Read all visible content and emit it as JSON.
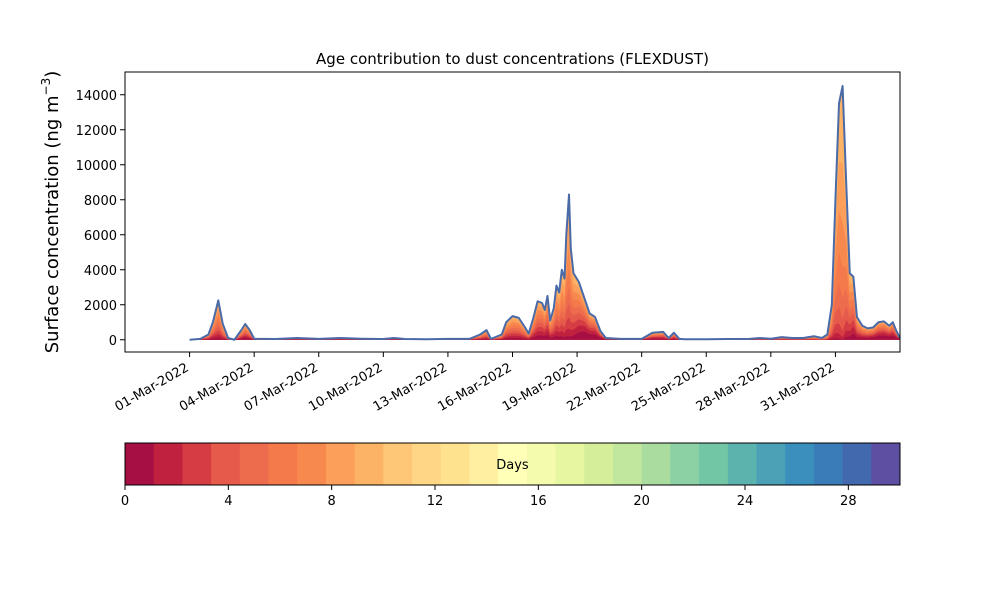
{
  "chart_data": {
    "type": "area",
    "title": "Age contribution to dust concentrations (FLEXDUST)",
    "ylabel_main": "Surface concentration (ng m",
    "ylabel_exp": "−3",
    "ylabel_close": ")",
    "ylim": [
      -700,
      15300
    ],
    "x_range": [
      "2022-02-26",
      "2022-04-03"
    ],
    "y_ticks": [
      0,
      2000,
      4000,
      6000,
      8000,
      10000,
      12000,
      14000
    ],
    "y_tick_labels": [
      "0",
      "2000",
      "4000",
      "6000",
      "8000",
      "10000",
      "12000",
      "14000"
    ],
    "x_ticks": [
      "2022-03-01",
      "2022-03-04",
      "2022-03-07",
      "2022-03-10",
      "2022-03-13",
      "2022-03-16",
      "2022-03-19",
      "2022-03-22",
      "2022-03-25",
      "2022-03-28",
      "2022-03-31"
    ],
    "x_tick_labels": [
      "01-Mar-2022",
      "04-Mar-2022",
      "07-Mar-2022",
      "10-Mar-2022",
      "13-Mar-2022",
      "16-Mar-2022",
      "19-Mar-2022",
      "22-Mar-2022",
      "25-Mar-2022",
      "28-Mar-2022",
      "31-Mar-2022"
    ],
    "total_series": {
      "color": "#4a6aa8",
      "points": [
        [
          "2022-03-01",
          0
        ],
        [
          "2022-03-01T12:00",
          50
        ],
        [
          "2022-03-01T21:00",
          300
        ],
        [
          "2022-03-02T02:00",
          1000
        ],
        [
          "2022-03-02T08:00",
          2250
        ],
        [
          "2022-03-02T13:00",
          900
        ],
        [
          "2022-03-02T19:00",
          100
        ],
        [
          "2022-03-03T02:00",
          0
        ],
        [
          "2022-03-03T09:00",
          500
        ],
        [
          "2022-03-03T14:00",
          900
        ],
        [
          "2022-03-03T19:00",
          550
        ],
        [
          "2022-03-04",
          60
        ],
        [
          "2022-03-05",
          40
        ],
        [
          "2022-03-06",
          100
        ],
        [
          "2022-03-07",
          50
        ],
        [
          "2022-03-08",
          100
        ],
        [
          "2022-03-09",
          60
        ],
        [
          "2022-03-10",
          40
        ],
        [
          "2022-03-10T12:00",
          100
        ],
        [
          "2022-03-11",
          40
        ],
        [
          "2022-03-12",
          30
        ],
        [
          "2022-03-13",
          50
        ],
        [
          "2022-03-14",
          50
        ],
        [
          "2022-03-14T12:00",
          300
        ],
        [
          "2022-03-14T19:00",
          550
        ],
        [
          "2022-03-15",
          50
        ],
        [
          "2022-03-15T12:00",
          300
        ],
        [
          "2022-03-15T17:00",
          1000
        ],
        [
          "2022-03-16",
          1350
        ],
        [
          "2022-03-16T07:00",
          1250
        ],
        [
          "2022-03-16T14:00",
          700
        ],
        [
          "2022-03-16T18:00",
          350
        ],
        [
          "2022-03-16T23:00",
          1200
        ],
        [
          "2022-03-17T04:00",
          2200
        ],
        [
          "2022-03-17T09:00",
          2100
        ],
        [
          "2022-03-17T12:00",
          1700
        ],
        [
          "2022-03-17T15:00",
          2500
        ],
        [
          "2022-03-17T18:00",
          1100
        ],
        [
          "2022-03-17T22:00",
          1800
        ],
        [
          "2022-03-18T01:00",
          3100
        ],
        [
          "2022-03-18T04:00",
          2700
        ],
        [
          "2022-03-18T07:00",
          4000
        ],
        [
          "2022-03-18T10:00",
          3500
        ],
        [
          "2022-03-18T12:00",
          6000
        ],
        [
          "2022-03-18T15:00",
          8300
        ],
        [
          "2022-03-18T17:00",
          5200
        ],
        [
          "2022-03-18T20:00",
          3800
        ],
        [
          "2022-03-19T02:00",
          3300
        ],
        [
          "2022-03-19T08:00",
          2400
        ],
        [
          "2022-03-19T14:00",
          1500
        ],
        [
          "2022-03-19T20:00",
          1300
        ],
        [
          "2022-03-20T02:00",
          500
        ],
        [
          "2022-03-20T08:00",
          100
        ],
        [
          "2022-03-21",
          50
        ],
        [
          "2022-03-22",
          50
        ],
        [
          "2022-03-22T12:00",
          400
        ],
        [
          "2022-03-23",
          450
        ],
        [
          "2022-03-23T06:00",
          100
        ],
        [
          "2022-03-23T12:00",
          400
        ],
        [
          "2022-03-23T18:00",
          50
        ],
        [
          "2022-03-24",
          30
        ],
        [
          "2022-03-25",
          30
        ],
        [
          "2022-03-26",
          40
        ],
        [
          "2022-03-27",
          50
        ],
        [
          "2022-03-27T12:00",
          100
        ],
        [
          "2022-03-28",
          60
        ],
        [
          "2022-03-28T12:00",
          150
        ],
        [
          "2022-03-29",
          100
        ],
        [
          "2022-03-29T12:00",
          100
        ],
        [
          "2022-03-30",
          200
        ],
        [
          "2022-03-30T09:00",
          100
        ],
        [
          "2022-03-30T15:00",
          300
        ],
        [
          "2022-03-30T20:00",
          2000
        ],
        [
          "2022-03-31",
          8000
        ],
        [
          "2022-03-31T04:00",
          13500
        ],
        [
          "2022-03-31T08:00",
          14500
        ],
        [
          "2022-03-31T12:00",
          9000
        ],
        [
          "2022-03-31T16:00",
          3800
        ],
        [
          "2022-03-31T20:00",
          3600
        ],
        [
          "2022-04-01",
          1300
        ],
        [
          "2022-04-01T06:00",
          800
        ],
        [
          "2022-04-01T12:00",
          650
        ],
        [
          "2022-04-01T18:00",
          700
        ],
        [
          "2022-04-02",
          1000
        ],
        [
          "2022-04-02T06:00",
          1050
        ],
        [
          "2022-04-02T12:00",
          800
        ],
        [
          "2022-04-02T16:00",
          1000
        ],
        [
          "2022-04-02T20:00",
          500
        ],
        [
          "2022-04-03",
          100
        ]
      ]
    },
    "age_fraction_profile": [
      [
        "2022-03-01",
        0.35
      ],
      [
        "2022-03-02T08:00",
        0.7
      ],
      [
        "2022-03-03T14:00",
        0.55
      ],
      [
        "2022-03-10",
        0.5
      ],
      [
        "2022-03-14T19:00",
        0.6
      ],
      [
        "2022-03-16",
        0.65
      ],
      [
        "2022-03-17T15:00",
        0.55
      ],
      [
        "2022-03-18T15:00",
        0.8
      ],
      [
        "2022-03-19T08:00",
        0.4
      ],
      [
        "2022-03-20",
        0.3
      ],
      [
        "2022-03-22T12:00",
        0.45
      ],
      [
        "2022-03-30T20:00",
        0.8
      ],
      [
        "2022-03-31T08:00",
        0.95
      ],
      [
        "2022-03-31T20:00",
        0.6
      ],
      [
        "2022-04-02",
        0.35
      ],
      [
        "2022-04-03",
        0.3
      ]
    ],
    "colorbar": {
      "label": "Days",
      "range": [
        0,
        30
      ],
      "tick_values": [
        0,
        4,
        8,
        12,
        16,
        20,
        24,
        28
      ],
      "tick_labels": [
        "0",
        "4",
        "8",
        "12",
        "16",
        "20",
        "24",
        "28"
      ],
      "colors": [
        "#a50f43",
        "#c0213f",
        "#d53c44",
        "#e55a4a",
        "#ee6c4e",
        "#f47a4c",
        "#f8894e",
        "#fb9f5b",
        "#fdb366",
        "#fec777",
        "#fed685",
        "#fee28e",
        "#fef0a0",
        "#ffffb8",
        "#f4fbac",
        "#e7f6a0",
        "#d5ee9a",
        "#c1e69d",
        "#a9dc9e",
        "#8cd1a4",
        "#72c6a6",
        "#5cb3ae",
        "#4ca1b6",
        "#3b8fbc",
        "#3a7cb8",
        "#4269ae",
        "#5e4fa2"
      ]
    }
  }
}
